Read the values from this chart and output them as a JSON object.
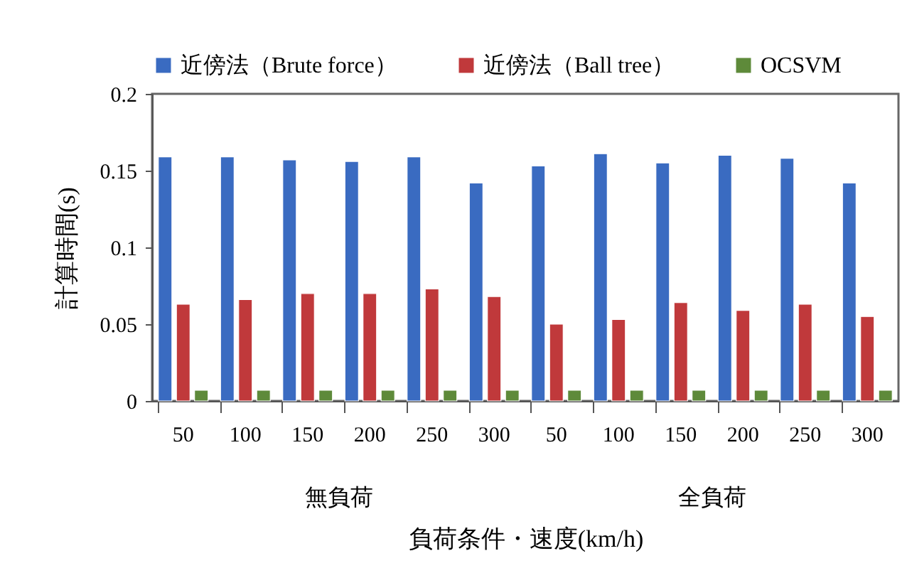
{
  "chart_data": {
    "type": "bar",
    "xlabel": "負荷条件・速度(km/h)",
    "ylabel": "計算時間(s)",
    "categories": [
      "50",
      "100",
      "150",
      "200",
      "250",
      "300",
      "50",
      "100",
      "150",
      "200",
      "250",
      "300"
    ],
    "annotations": [
      "無負荷",
      "全負荷"
    ],
    "series": [
      {
        "name": "近傍法（Brute force）",
        "color": "#3a6bc1",
        "values": [
          0.159,
          0.159,
          0.157,
          0.156,
          0.159,
          0.142,
          0.153,
          0.161,
          0.155,
          0.16,
          0.158,
          0.142
        ]
      },
      {
        "name": "近傍法（Ball tree）",
        "color": "#c0393b",
        "values": [
          0.063,
          0.066,
          0.07,
          0.07,
          0.073,
          0.068,
          0.05,
          0.053,
          0.064,
          0.059,
          0.063,
          0.055
        ]
      },
      {
        "name": "OCSVM",
        "color": "#5e8a3a",
        "values": [
          0.007,
          0.007,
          0.007,
          0.007,
          0.007,
          0.007,
          0.007,
          0.007,
          0.007,
          0.007,
          0.007,
          0.007
        ]
      }
    ],
    "ylim": [
      0,
      0.2
    ],
    "yticks": [
      0,
      0.05,
      0.1,
      0.15,
      0.2
    ],
    "grid": false,
    "legend": "top"
  }
}
